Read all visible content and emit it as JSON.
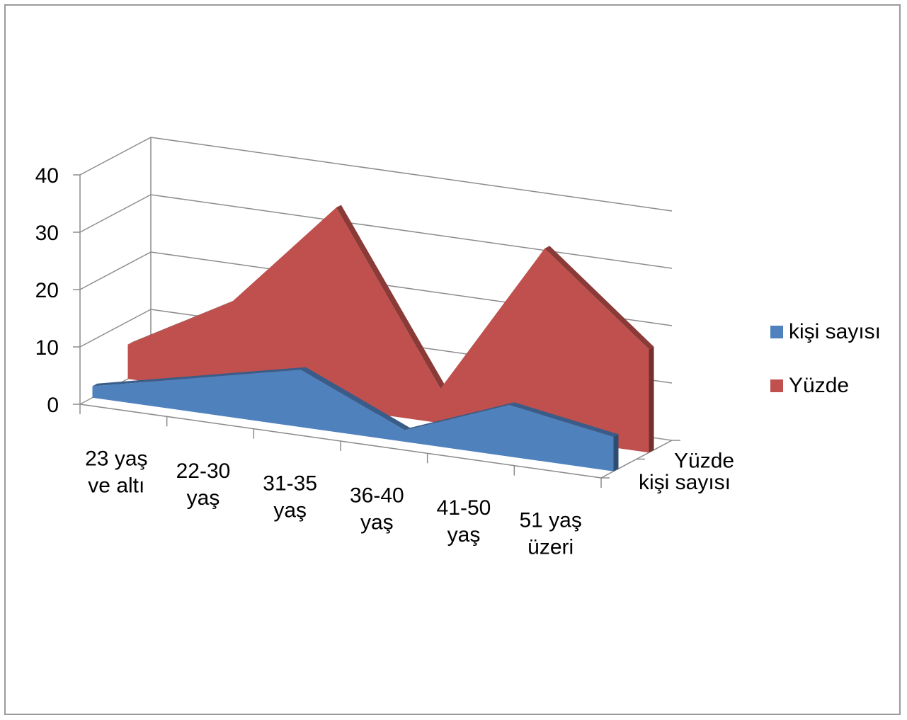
{
  "chart_data": {
    "type": "area",
    "three_d": true,
    "categories": [
      [
        "23 yaş",
        "ve altı"
      ],
      [
        "22-30",
        "yaş"
      ],
      [
        "31-35",
        "yaş"
      ],
      [
        "36-40",
        "yaş"
      ],
      [
        "41-50",
        "yaş"
      ],
      [
        "51 yaş",
        "üzeri"
      ]
    ],
    "series": [
      {
        "name": "kişi sayısı",
        "color": "#4F81BD",
        "values": [
          2,
          6,
          10,
          2,
          9,
          6
        ]
      },
      {
        "name": "Yüzde",
        "color": "#C0504D",
        "values": [
          6,
          16,
          35,
          6,
          33,
          18
        ]
      }
    ],
    "depth_labels": [
      "Yüzde",
      "kişi sayısı"
    ],
    "yticks": [
      0,
      10,
      20,
      30,
      40
    ],
    "ylim": [
      0,
      40
    ],
    "grid": true,
    "legend_position": "right"
  }
}
